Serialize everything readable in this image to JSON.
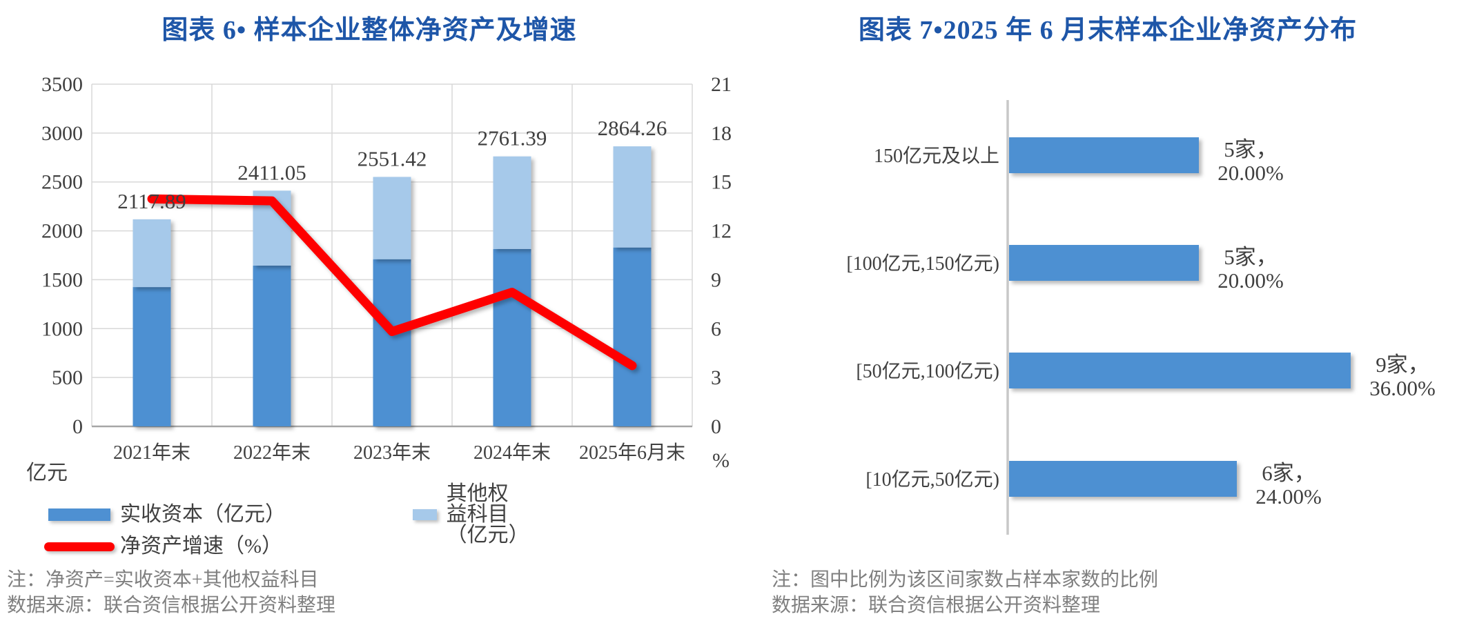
{
  "panels": {
    "left": {
      "notes": [
        "注：净资产=实收资本+其他权益科目",
        "数据来源：联合资信根据公开资料整理"
      ]
    },
    "right": {
      "notes": [
        "注：图中比例为该区间家数占样本家数的比例",
        "数据来源：联合资信根据公开资料整理"
      ]
    }
  },
  "colors": {
    "title_blue": "#1E56A8",
    "bar_dark_blue": "#4E90D2",
    "bar_light_blue": "#A6C9EA",
    "line_red": "#FE0101",
    "gridline": "#D8D8D8",
    "baseline": "#A6A6A6",
    "axis_line_right_chart": "#C8C8C8",
    "axis_text": "#404040",
    "note_text": "#7F7F7F"
  },
  "chart_data": [
    {
      "id": "net-assets-trend",
      "type": "bar",
      "combo": "stacked-column-with-line",
      "title": "图表 6• 样本企业整体净资产及增速",
      "categories": [
        "2021年末",
        "2022年末",
        "2023年末",
        "2024年末",
        "2025年6月末"
      ],
      "series": [
        {
          "name": "实收资本（亿元）",
          "type": "bar",
          "stack": true,
          "axis": "left",
          "color": "#4E90D2",
          "values": [
            1425,
            1645,
            1710,
            1815,
            1830
          ]
        },
        {
          "name": "其他权益科目（亿元）",
          "type": "bar",
          "stack": true,
          "axis": "left",
          "color": "#A6C9EA",
          "values": [
            692.89,
            766.05,
            841.42,
            946.39,
            1034.26
          ]
        },
        {
          "name": "净资产增速（%）",
          "type": "line",
          "axis": "right",
          "color": "#FE0101",
          "values": [
            13.96,
            13.84,
            5.82,
            8.23,
            3.73
          ]
        }
      ],
      "totals": [
        2117.89,
        2411.05,
        2551.42,
        2761.39,
        2864.26
      ],
      "total_labels": [
        "2117.89",
        "2411.05",
        "2551.42",
        "2761.39",
        "2864.26"
      ],
      "left_axis": {
        "label": "亿元",
        "min": 0,
        "max": 3500,
        "step": 500,
        "ticks": [
          "0",
          "500",
          "1000",
          "1500",
          "2000",
          "2500",
          "3000",
          "3500"
        ]
      },
      "right_axis": {
        "label": "%",
        "min": 0,
        "max": 21,
        "step": 3,
        "ticks": [
          "0",
          "3",
          "6",
          "9",
          "12",
          "15",
          "18",
          "21"
        ]
      },
      "grid": true,
      "legend_position": "bottom"
    },
    {
      "id": "net-assets-distribution",
      "type": "bar",
      "orientation": "horizontal",
      "title": "图表 7•2025 年 6 月末样本企业净资产分布",
      "categories": [
        "150亿元及以上",
        "[100亿元,150亿元)",
        "[50亿元,100亿元)",
        "[10亿元,50亿元)"
      ],
      "values": [
        20.0,
        20.0,
        36.0,
        24.0
      ],
      "counts": [
        5,
        5,
        9,
        6
      ],
      "data_labels": [
        [
          "5家，",
          "20.00%"
        ],
        [
          "5家，",
          "20.00%"
        ],
        [
          "9家，",
          "36.00%"
        ],
        [
          "6家，",
          "24.00%"
        ]
      ],
      "bar_color": "#4E90D2",
      "xlim": [
        0,
        40
      ],
      "grid": false,
      "legend_position": "none"
    }
  ]
}
